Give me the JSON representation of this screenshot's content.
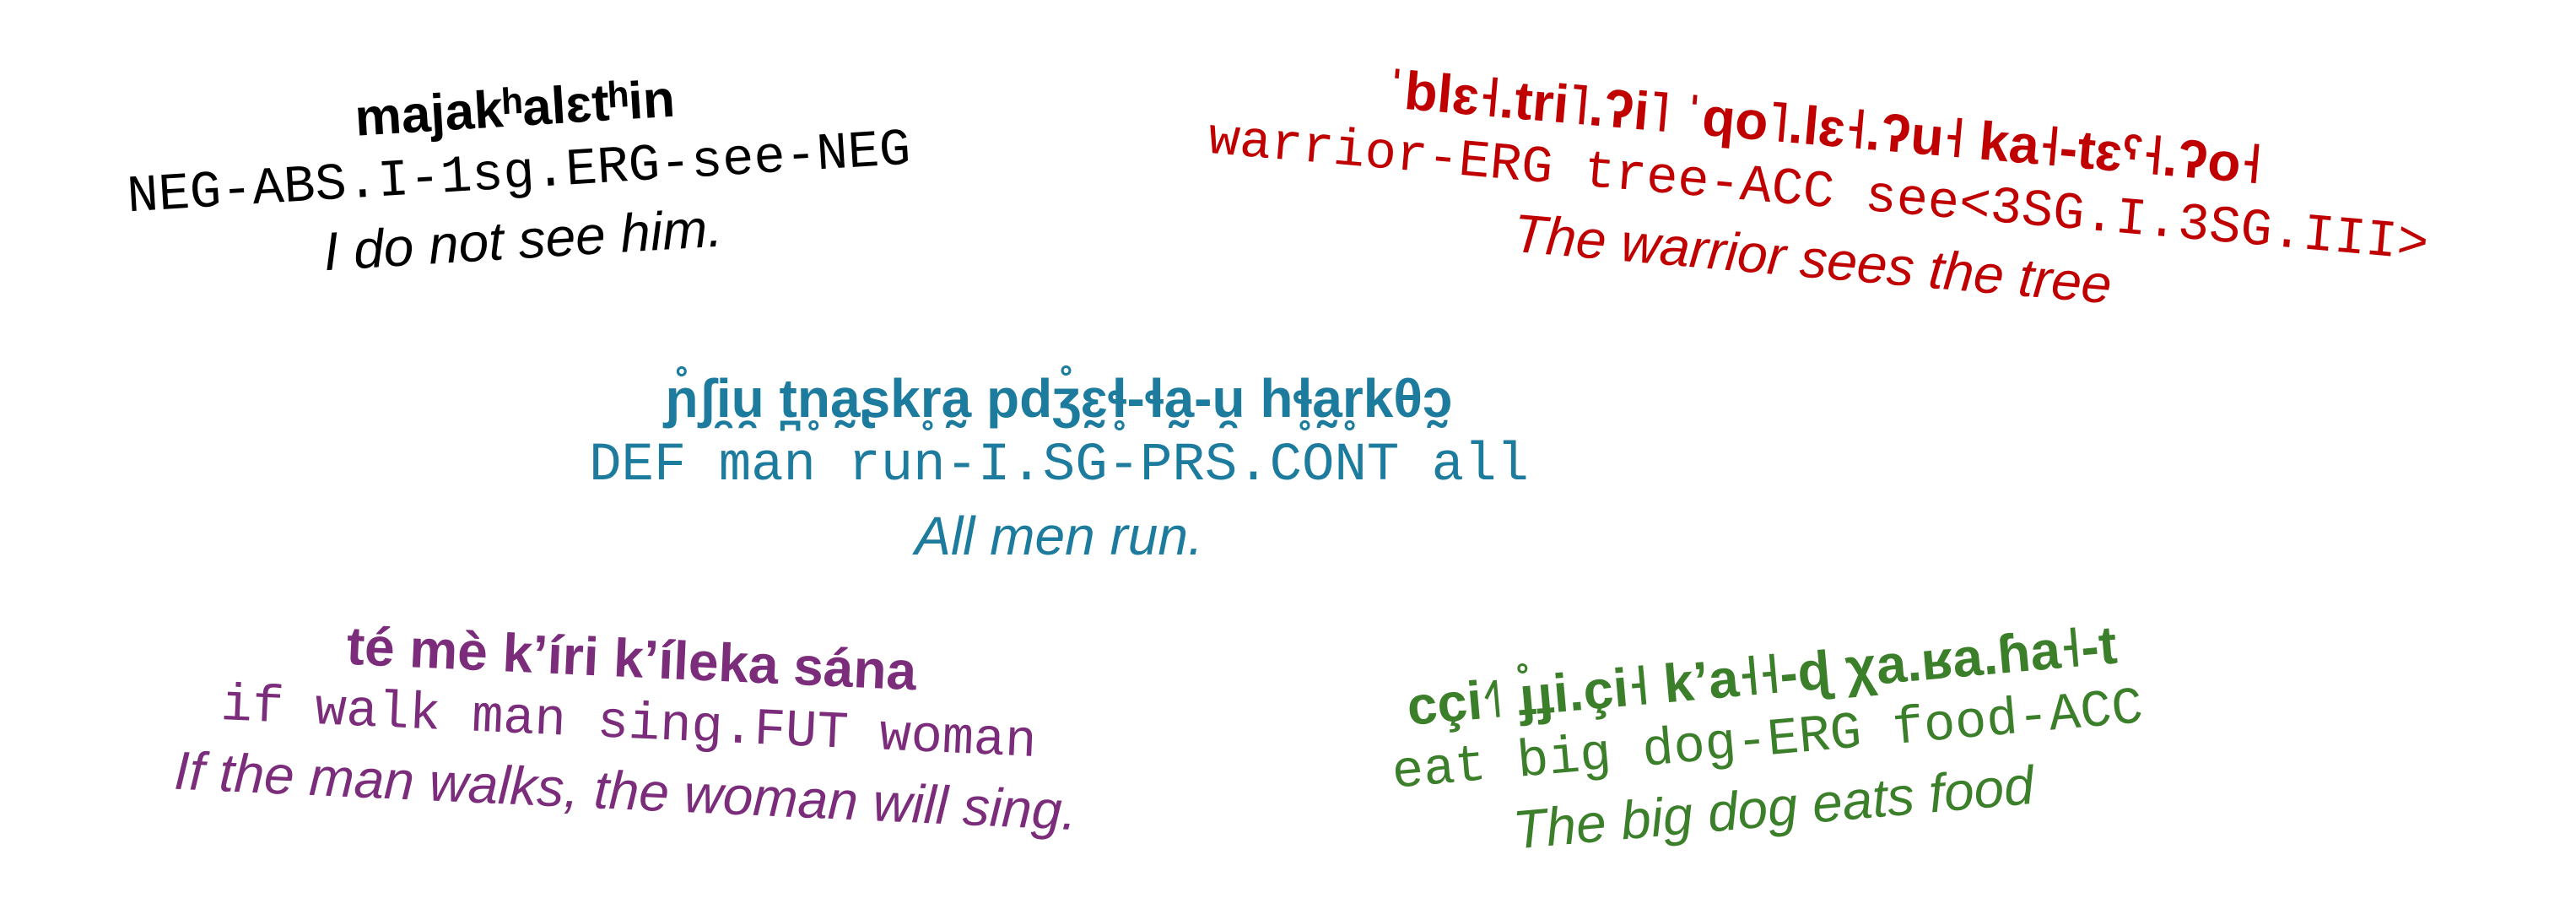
{
  "examples": [
    {
      "color": "#000000",
      "native": "majakʰalɛtʰin",
      "gloss": "NEG-ABS.I-1sg.ERG-see-NEG",
      "translation": "I do not see him."
    },
    {
      "color": "#c00000",
      "native": "ˈblɛ˧.tri˥.ʔi˥ ˈqo˥.lɛ˧.ʔu˧ ka˧-tɛˤ˧.ʔo˧",
      "gloss": "warrior-ERG tree-ACC see<3SG.I.3SG.III>",
      "translation": "The warrior sees the tree"
    },
    {
      "color": "#1d7c9e",
      "native": "ɲ̊ʃi̯u̯ t̪n̥a̰ʂkr̥a̰ pdʒ̊ɛ̰ɬ̥-ɬa̰-u̯ hɬ̥a̰r̥kθɔ̰",
      "gloss": "DEF man run-I.SG-PRS.CONT all",
      "translation": "All men run."
    },
    {
      "color": "#7b2c7b",
      "native": "té mè k’íri k’íleka sána",
      "gloss": "if walk man sing.FUT woman",
      "translation": "If the man walks, the woman will sing."
    },
    {
      "color": "#3b7f2a",
      "native": "cçi˧˥ ɟ̊ɟi.çi˧ k’a˧˧-ɖ χa.ʁa.ɦa˧-t",
      "gloss": "eat big dog-ERG food-ACC",
      "translation": "The big dog eats food"
    }
  ]
}
